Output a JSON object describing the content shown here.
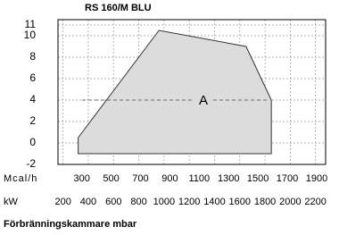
{
  "chart_data": {
    "type": "area",
    "title": "RS 160/M BLU",
    "x": [
      320,
      320,
      960,
      1650,
      1850,
      1850
    ],
    "y": [
      -1,
      0.5,
      10.5,
      9,
      4,
      -1
    ],
    "color": "#dcdcdc",
    "xlim": [
      160,
      2280
    ],
    "xticks": [
      200,
      400,
      600,
      800,
      1000,
      1200,
      1400,
      1600,
      1800,
      2000,
      2200
    ],
    "xlabel": "kW",
    "x2lim": [
      138,
      1961
    ],
    "x2ticks": [
      300,
      500,
      700,
      900,
      1100,
      1300,
      1500,
      1700,
      1900
    ],
    "x2label": "Mcal/h",
    "ylim": [
      -2,
      11.5
    ],
    "yticks": [
      -2,
      0,
      2,
      4,
      6,
      8,
      10,
      11
    ],
    "ylabel": "Förbränningskammare mbar",
    "annotation": "A",
    "grid": true
  }
}
